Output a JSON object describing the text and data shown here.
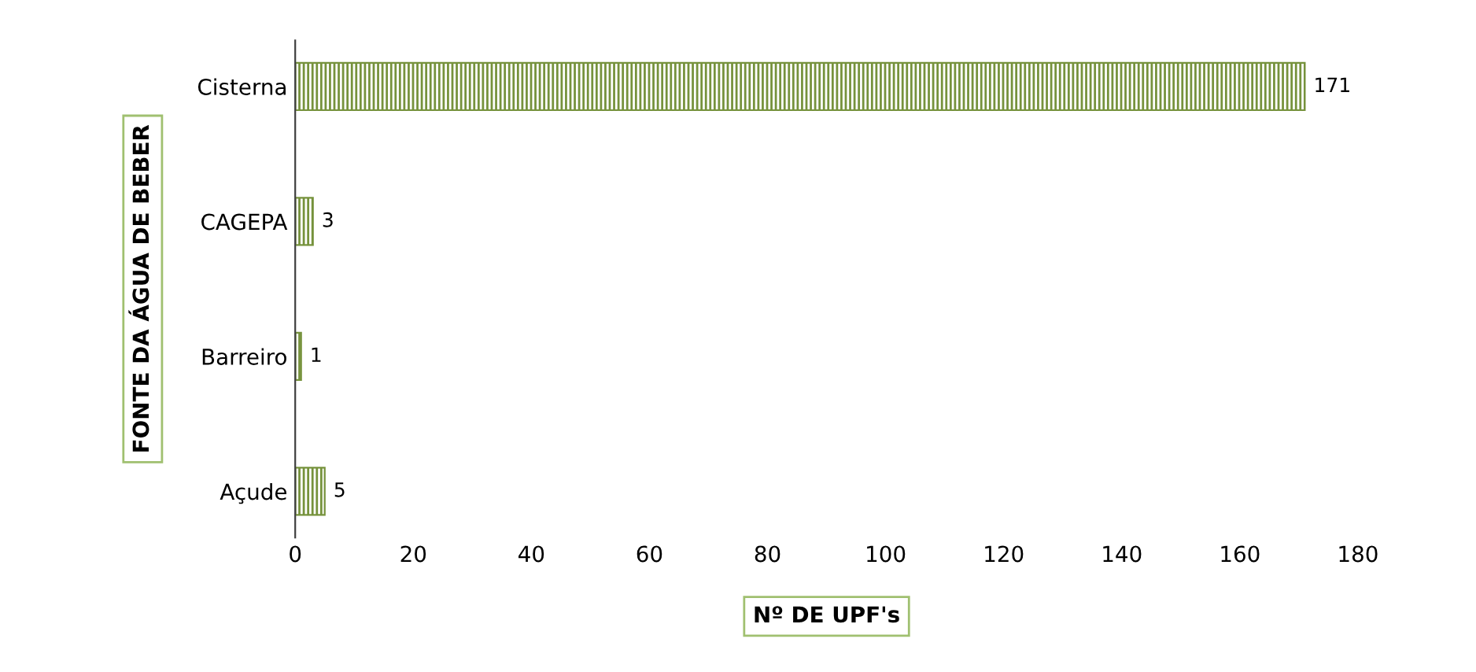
{
  "chart_data": {
    "type": "bar",
    "orientation": "horizontal",
    "xlabel": "Nº DE UPF's",
    "ylabel": "FONTE DA ÁGUA DE BEBER",
    "categories": [
      "Cisterna",
      "CAGEPA",
      "Barreiro",
      "Açude"
    ],
    "values": [
      171,
      3,
      1,
      5
    ],
    "color": "#76923c",
    "data_labels": true,
    "xlim": [
      0,
      180
    ],
    "xticks": [
      0,
      20,
      40,
      60,
      80,
      100,
      120,
      140,
      160,
      180
    ],
    "grid": false,
    "legend": false
  }
}
